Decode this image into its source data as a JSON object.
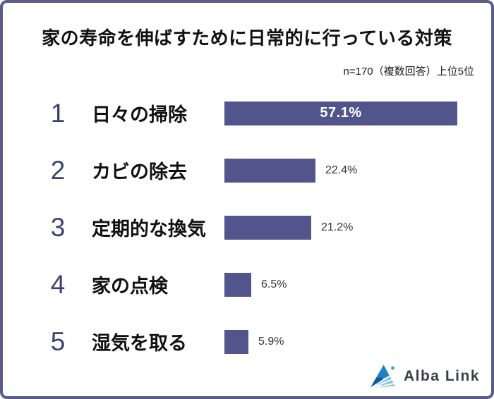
{
  "chart": {
    "title": "家の寿命を伸ばすために日常的に行っている対策",
    "note": "n=170（複数回答）上位5位"
  },
  "rows": [
    {
      "rank": "1",
      "label": "日々の掃除",
      "value": 57.1,
      "value_label": "57.1%",
      "value_position": "inside"
    },
    {
      "rank": "2",
      "label": "カビの除去",
      "value": 22.4,
      "value_label": "22.4%",
      "value_position": "outside"
    },
    {
      "rank": "3",
      "label": "定期的な換気",
      "value": 21.2,
      "value_label": "21.2%",
      "value_position": "outside"
    },
    {
      "rank": "4",
      "label": "家の点検",
      "value": 6.5,
      "value_label": "6.5%",
      "value_position": "outside"
    },
    {
      "rank": "5",
      "label": "湿気を取る",
      "value": 5.9,
      "value_label": "5.9%",
      "value_position": "outside"
    }
  ],
  "footer": {
    "brand": "Alba Link",
    "logo_icon": "alba-link-triangle-logo"
  },
  "colors": {
    "bar": "#52558C",
    "border": "#5A5C8A",
    "rank": "#3B4273",
    "value_inside": "#FFFFFF",
    "value_outside": "#333333",
    "brand_text": "#3B4048",
    "logo_mid_blue": "#1F81C4",
    "logo_dark_blue": "#0C599F",
    "logo_light_blue": "#7FC3E8",
    "logo_dot_blue": "#2E9AD6"
  },
  "chart_data": {
    "type": "bar",
    "orientation": "horizontal",
    "title": "家の寿命を伸ばすために日常的に行っている対策",
    "annotation": "n=170（複数回答）上位5位",
    "ranks": [
      1,
      2,
      3,
      4,
      5
    ],
    "categories": [
      "日々の掃除",
      "カビの除去",
      "定期的な換気",
      "家の点検",
      "湿気を取る"
    ],
    "values": [
      57.1,
      22.4,
      21.2,
      6.5,
      5.9
    ],
    "value_labels": [
      "57.1%",
      "22.4%",
      "21.2%",
      "6.5%",
      "5.9%"
    ],
    "xlabel": "",
    "ylabel": "",
    "xlim": [
      0,
      60
    ],
    "grid": false,
    "legend": false,
    "bar_color": "#52558C"
  }
}
